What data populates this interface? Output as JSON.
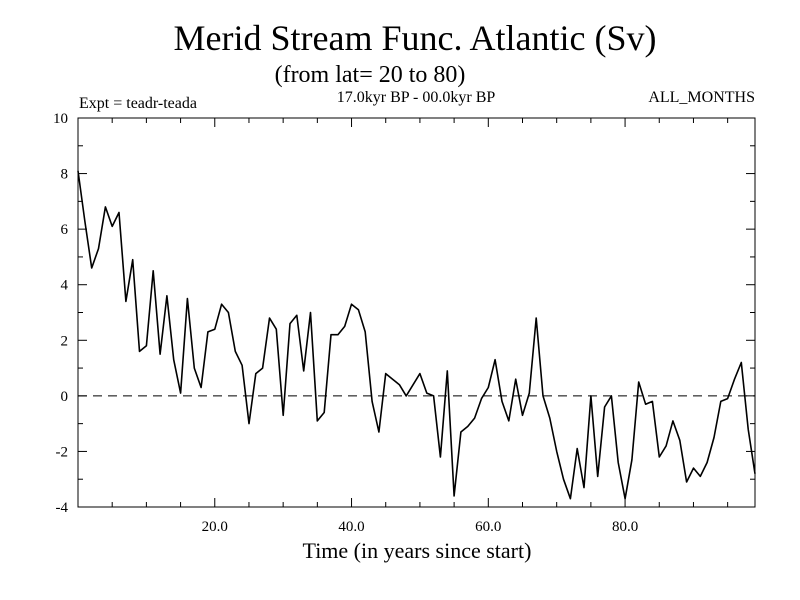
{
  "chart_data": {
    "type": "line",
    "title": "Merid Stream Func. Atlantic (Sv)",
    "subtitle": "(from lat= 20 to 80)",
    "experiment": "Expt = teadr-teada",
    "period": "17.0kyr BP - 00.0kyr BP",
    "season": "ALL_MONTHS",
    "xlabel": "Time (in years since start)",
    "ylabel": "",
    "xlim": [
      0,
      99
    ],
    "ylim": [
      -4,
      10
    ],
    "x_ticks": [
      20,
      40,
      60,
      80
    ],
    "x_tick_labels": [
      "20.0",
      "40.0",
      "60.0",
      "80.0"
    ],
    "y_ticks": [
      -4,
      -2,
      0,
      2,
      4,
      6,
      8,
      10
    ],
    "y_tick_labels": [
      "-4",
      "-2",
      "0",
      "2",
      "4",
      "6",
      "8",
      "10"
    ],
    "reference_line": 0,
    "series": [
      {
        "name": "teadr-teada",
        "x": [
          0,
          1,
          2,
          3,
          4,
          5,
          6,
          7,
          8,
          9,
          10,
          11,
          12,
          13,
          14,
          15,
          16,
          17,
          18,
          19,
          20,
          21,
          22,
          23,
          24,
          25,
          26,
          27,
          28,
          29,
          30,
          31,
          32,
          33,
          34,
          35,
          36,
          37,
          38,
          39,
          40,
          41,
          42,
          43,
          44,
          45,
          46,
          47,
          48,
          49,
          50,
          51,
          52,
          53,
          54,
          55,
          56,
          57,
          58,
          59,
          60,
          61,
          62,
          63,
          64,
          65,
          66,
          67,
          68,
          69,
          70,
          71,
          72,
          73,
          74,
          75,
          76,
          77,
          78,
          79,
          80,
          81,
          82,
          83,
          84,
          85,
          86,
          87,
          88,
          89,
          90,
          91,
          92,
          93,
          94,
          95,
          96,
          97,
          98,
          99
        ],
        "values": [
          8.1,
          6.3,
          4.6,
          5.3,
          6.8,
          6.1,
          6.6,
          3.4,
          4.9,
          1.6,
          1.8,
          4.5,
          1.5,
          3.6,
          1.3,
          0.1,
          3.5,
          1.0,
          0.3,
          2.3,
          2.4,
          3.3,
          3.0,
          1.6,
          1.1,
          -1.0,
          0.8,
          1.0,
          2.8,
          2.4,
          -0.7,
          2.6,
          2.9,
          0.9,
          3.0,
          -0.9,
          -0.6,
          2.2,
          2.2,
          2.5,
          3.3,
          3.1,
          2.3,
          -0.2,
          -1.3,
          0.8,
          0.6,
          0.4,
          0.0,
          0.4,
          0.8,
          0.1,
          0.0,
          -2.2,
          0.9,
          -3.6,
          -1.3,
          -1.1,
          -0.8,
          -0.1,
          0.3,
          1.3,
          -0.2,
          -0.9,
          0.6,
          -0.7,
          0.1,
          2.8,
          0.0,
          -0.8,
          -2.0,
          -3.0,
          -3.7,
          -1.9,
          -3.3,
          0.0,
          -2.9,
          -0.4,
          0.0,
          -2.4,
          -3.7,
          -2.3,
          0.5,
          -0.3,
          -0.2,
          -2.2,
          -1.8,
          -0.9,
          -1.6,
          -3.1,
          -2.6,
          -2.9,
          -2.4,
          -1.5,
          -0.2,
          -0.1,
          0.6,
          1.2,
          -1.2,
          -2.8
        ]
      }
    ]
  }
}
